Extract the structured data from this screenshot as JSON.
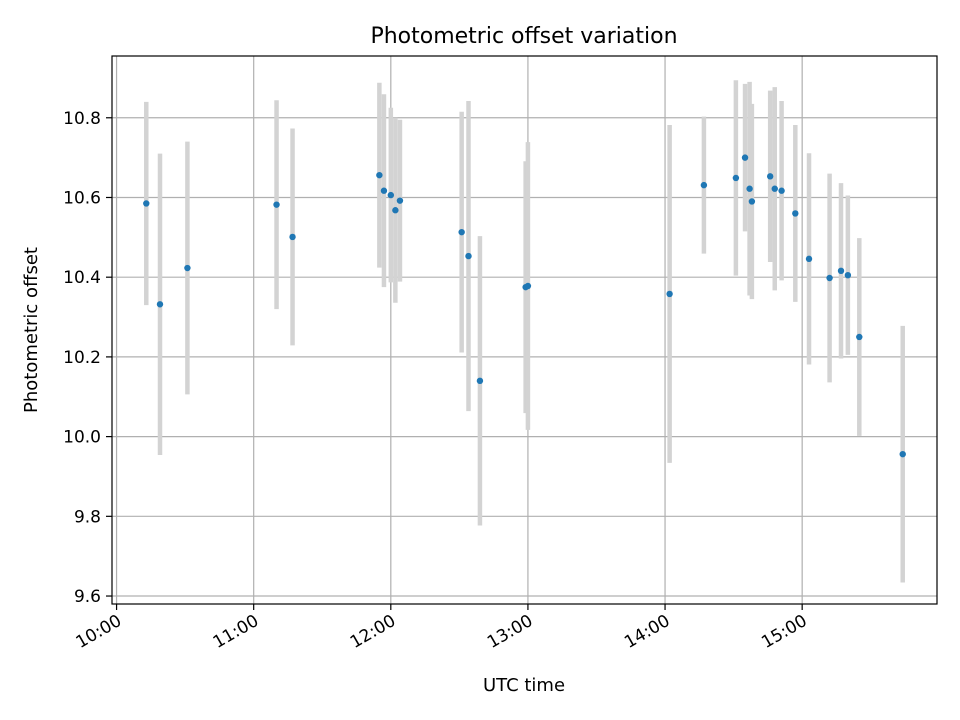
{
  "chart_data": {
    "type": "scatter",
    "title": "Photometric offset variation",
    "xlabel": "UTC time",
    "ylabel": "Photometric offset",
    "x_ticks": [
      "10:00",
      "11:00",
      "12:00",
      "13:00",
      "14:00",
      "15:00"
    ],
    "y_ticks": [
      "9.6",
      "9.8",
      "10.0",
      "10.2",
      "10.4",
      "10.6",
      "10.8"
    ],
    "xlim": [
      "09:58",
      "15:59"
    ],
    "ylim": [
      9.58,
      10.955
    ],
    "grid": true,
    "colors": {
      "point": "#1f77b4",
      "errorbar": "#d3d3d3",
      "grid": "#b0b0b0"
    },
    "points": [
      {
        "x": "10:13",
        "y": 10.585,
        "err": 0.255
      },
      {
        "x": "10:19",
        "y": 10.332,
        "err": 0.378
      },
      {
        "x": "10:31",
        "y": 10.423,
        "err": 0.317
      },
      {
        "x": "11:10",
        "y": 10.582,
        "err": 0.262
      },
      {
        "x": "11:17",
        "y": 10.501,
        "err": 0.272
      },
      {
        "x": "11:55",
        "y": 10.656,
        "err": 0.232
      },
      {
        "x": "11:57",
        "y": 10.617,
        "err": 0.242
      },
      {
        "x": "12:00",
        "y": 10.606,
        "err": 0.219
      },
      {
        "x": "12:02",
        "y": 10.568,
        "err": 0.232
      },
      {
        "x": "12:04",
        "y": 10.592,
        "err": 0.203
      },
      {
        "x": "12:31",
        "y": 10.513,
        "err": 0.302
      },
      {
        "x": "12:34",
        "y": 10.453,
        "err": 0.389
      },
      {
        "x": "12:39",
        "y": 10.14,
        "err": 0.363
      },
      {
        "x": "12:59",
        "y": 10.375,
        "err": 0.316
      },
      {
        "x": "13:00",
        "y": 10.378,
        "err": 0.361
      },
      {
        "x": "14:02",
        "y": 10.358,
        "err": 0.424
      },
      {
        "x": "14:17",
        "y": 10.631,
        "err": 0.172
      },
      {
        "x": "14:31",
        "y": 10.649,
        "err": 0.245
      },
      {
        "x": "14:35",
        "y": 10.7,
        "err": 0.185
      },
      {
        "x": "14:37",
        "y": 10.622,
        "err": 0.268
      },
      {
        "x": "14:38",
        "y": 10.59,
        "err": 0.245
      },
      {
        "x": "14:46",
        "y": 10.653,
        "err": 0.215
      },
      {
        "x": "14:48",
        "y": 10.622,
        "err": 0.255
      },
      {
        "x": "14:51",
        "y": 10.617,
        "err": 0.225
      },
      {
        "x": "14:57",
        "y": 10.56,
        "err": 0.222
      },
      {
        "x": "15:03",
        "y": 10.446,
        "err": 0.265
      },
      {
        "x": "15:12",
        "y": 10.398,
        "err": 0.262
      },
      {
        "x": "15:17",
        "y": 10.416,
        "err": 0.22
      },
      {
        "x": "15:20",
        "y": 10.405,
        "err": 0.2
      },
      {
        "x": "15:25",
        "y": 10.25,
        "err": 0.248
      },
      {
        "x": "15:44",
        "y": 9.956,
        "err": 0.322
      }
    ]
  }
}
